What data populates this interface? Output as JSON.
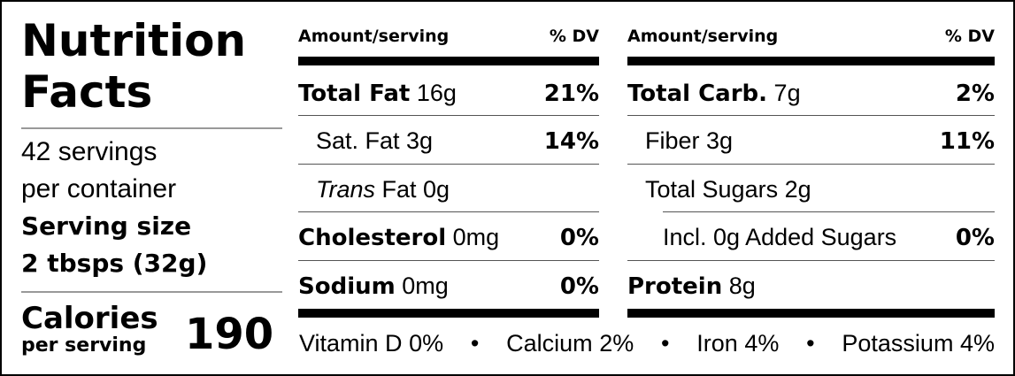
{
  "title_line1": "Nutrition",
  "title_line2": "Facts",
  "servings_line1": "42 servings",
  "servings_line2": "per container",
  "serving_size_label": "Serving size",
  "serving_size_value": "2 tbsps (32g)",
  "calories_label": "Calories",
  "calories_sub": "per serving",
  "calories_value": "190",
  "header": {
    "amount": "Amount/serving",
    "dv": "% DV"
  },
  "left": [
    {
      "name": "Total Fat",
      "amount": "16g",
      "dv": "21%"
    },
    {
      "name": "Sat. Fat 3g",
      "dv": "14%"
    },
    {
      "italic": "Trans",
      "rest": " Fat 0g"
    },
    {
      "name": "Cholesterol",
      "amount": "0mg",
      "dv": "0%"
    },
    {
      "name": "Sodium",
      "amount": "0mg",
      "dv": "0%"
    }
  ],
  "right": [
    {
      "name": "Total Carb.",
      "amount": "7g",
      "dv": "2%"
    },
    {
      "name": "Fiber 3g",
      "dv": "11%"
    },
    {
      "name": "Total Sugars 2g"
    },
    {
      "name": "Incl. 0g Added Sugars",
      "dv": "0%"
    },
    {
      "name": "Protein",
      "amount": "8g"
    }
  ],
  "footer": {
    "vitd": "Vitamin D",
    "vitd_v": "0%",
    "calcium": "Calcium",
    "calcium_v": "2%",
    "iron": "Iron",
    "iron_v": "4%",
    "potassium": "Potassium",
    "potassium_v": "4%",
    "sep": "•"
  }
}
